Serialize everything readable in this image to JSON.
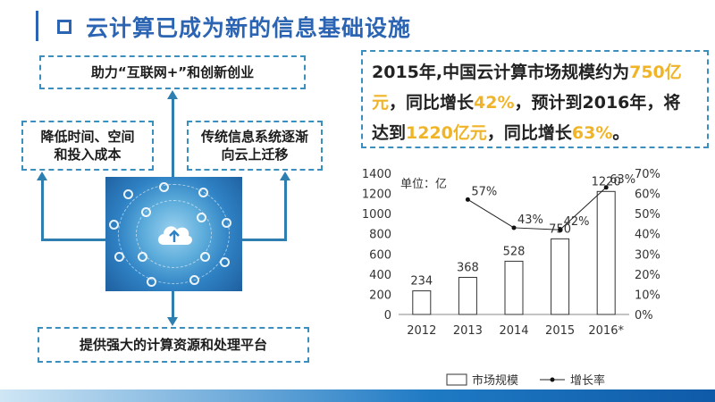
{
  "title": "云计算已成为新的信息基础设施",
  "diagram": {
    "top_box": "助力“互联网+”和创新创业",
    "left_box": [
      "降低时间、空间",
      "和投入成本"
    ],
    "right_box": [
      "传统信息系统逐渐",
      "向云上迁移"
    ],
    "bottom_box": "提供强大的计算资源和处理平台",
    "center_image": "cloud-network-image"
  },
  "highlight": {
    "line1_a": "2015年,中国云计算市场规模约为",
    "line1_b": "750亿",
    "line2_a": "元",
    "line2_b": "，同比增长",
    "line2_c": "42%",
    "line2_d": "，预计到2016年，将",
    "line3_a": "达到",
    "line3_b": "1220亿元",
    "line3_c": "，同比增长",
    "line3_d": "63%",
    "line3_e": "。",
    "accent_color": "#f0b429"
  },
  "chart_data": {
    "type": "bar",
    "unit_label": "单位：亿",
    "categories": [
      "2012",
      "2013",
      "2014",
      "2015",
      "2016*"
    ],
    "series": [
      {
        "name": "市场规模",
        "type": "bar",
        "axis": "left",
        "values": [
          234,
          368,
          528,
          750,
          1220
        ]
      },
      {
        "name": "增长率",
        "type": "line",
        "axis": "right",
        "values": [
          null,
          57,
          43,
          42,
          63
        ],
        "labels": [
          "",
          "57%",
          "43%",
          "42%",
          "63%"
        ]
      }
    ],
    "left_axis": {
      "ticks": [
        0,
        200,
        400,
        600,
        800,
        1000,
        1200,
        1400
      ],
      "ylim": [
        0,
        1400
      ]
    },
    "right_axis": {
      "ticks": [
        "0%",
        "10%",
        "20%",
        "30%",
        "40%",
        "50%",
        "60%",
        "70%"
      ],
      "ylim": [
        0,
        70
      ]
    },
    "legend": [
      "市场规模",
      "增长率"
    ]
  }
}
